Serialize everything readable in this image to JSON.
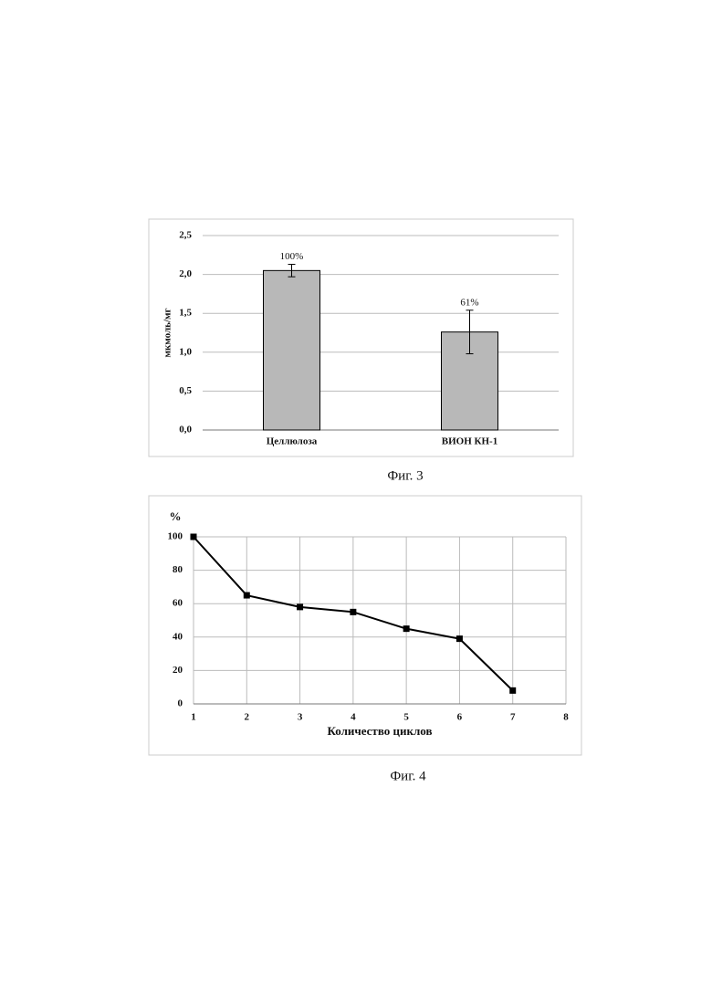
{
  "chart_data": [
    {
      "type": "bar",
      "caption": "Фиг. 3",
      "ylabel": "мкмоль/мг",
      "categories": [
        "Целлюлоза",
        "ВИОН КН-1"
      ],
      "values": [
        2.05,
        1.26
      ],
      "errors": [
        0.08,
        0.28
      ],
      "annotations": [
        "100%",
        "61%"
      ],
      "color": "#b8b8b8",
      "ylim": [
        0,
        2.5
      ],
      "yticks": [
        {
          "value": 0,
          "label": "0,0"
        },
        {
          "value": 0.5,
          "label": "0,5"
        },
        {
          "value": 1,
          "label": "1,0"
        },
        {
          "value": 1.5,
          "label": "1,5"
        },
        {
          "value": 2,
          "label": "2,0"
        },
        {
          "value": 2.5,
          "label": "2,5"
        }
      ],
      "grid": true
    },
    {
      "type": "line",
      "caption": "Фиг. 4",
      "ylabel": "%",
      "xlabel": "Количество циклов",
      "x": [
        1,
        2,
        3,
        4,
        5,
        6,
        7
      ],
      "values": [
        100,
        65,
        58,
        55,
        45,
        39,
        8
      ],
      "color": "#000000",
      "xlim": [
        1,
        8
      ],
      "xticks": [
        1,
        2,
        3,
        4,
        5,
        6,
        7,
        8
      ],
      "ylim": [
        0,
        100
      ],
      "yticks": [
        0,
        20,
        40,
        60,
        80,
        100
      ],
      "grid": true
    }
  ]
}
